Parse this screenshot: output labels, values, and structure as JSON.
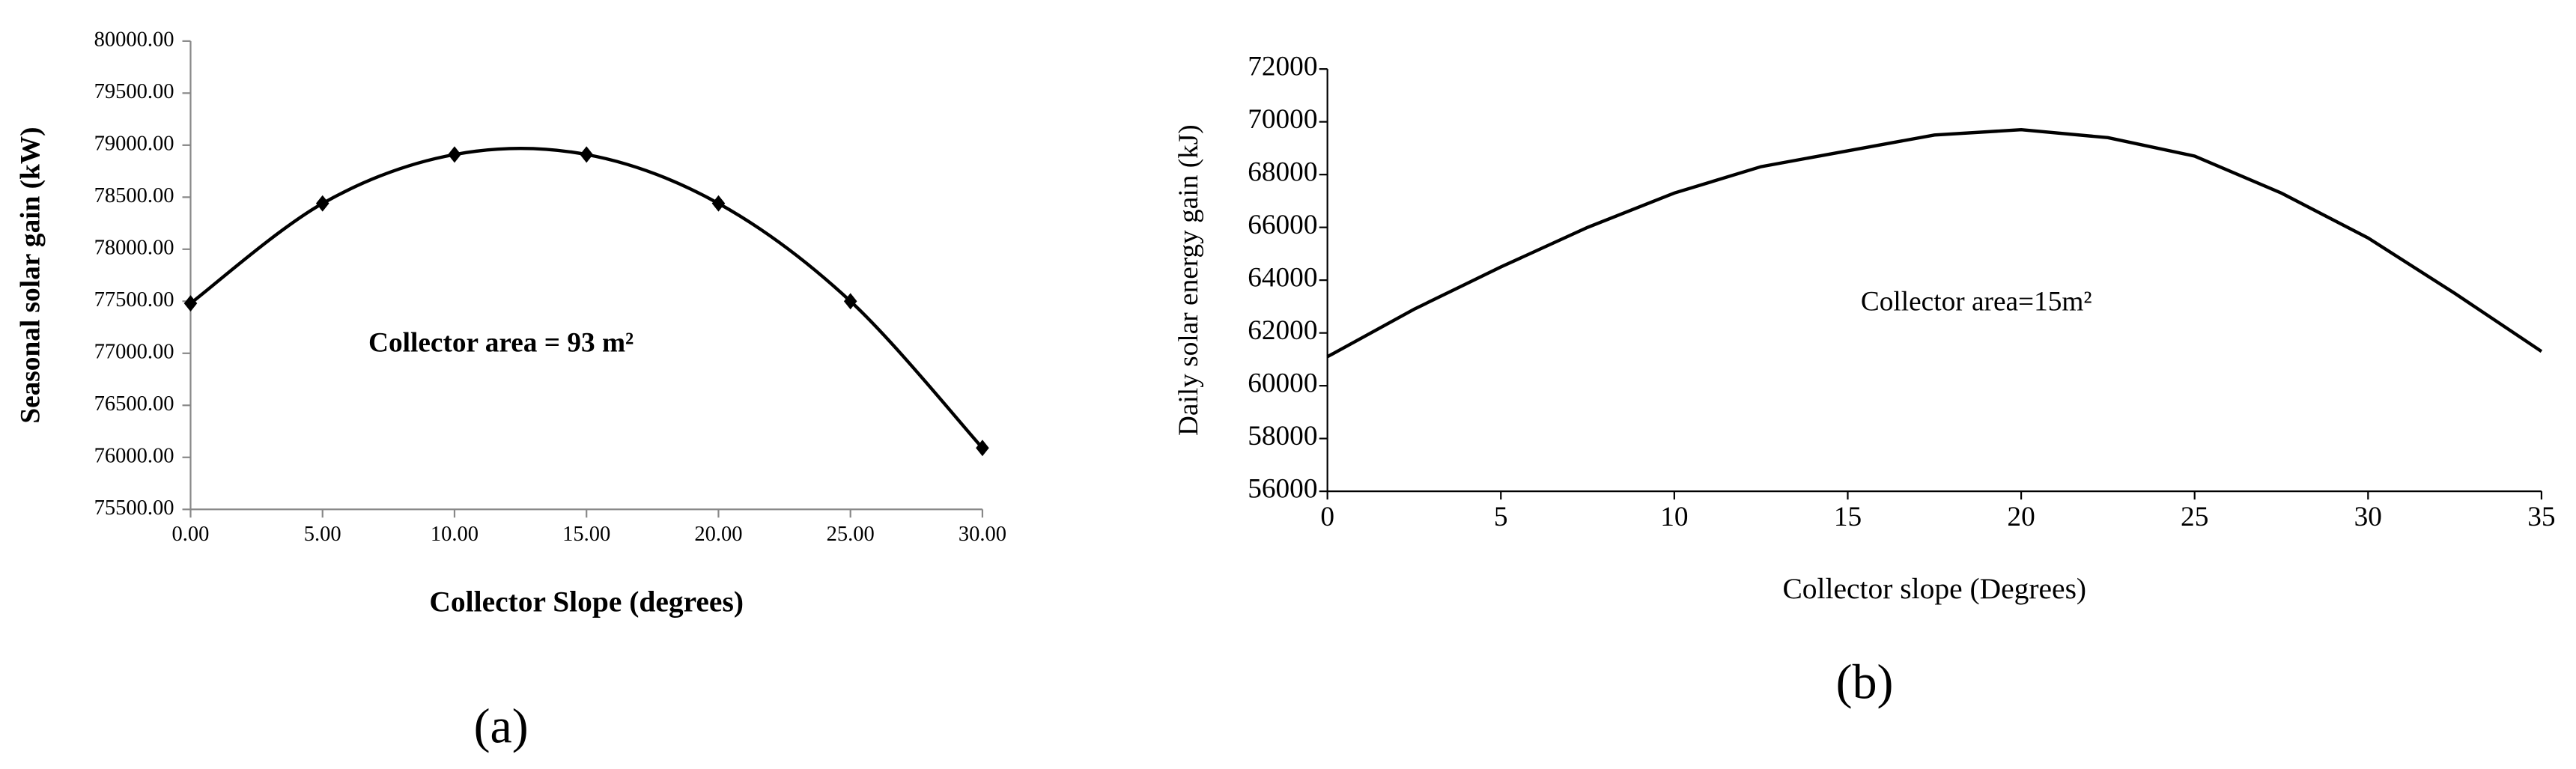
{
  "chart_data": [
    {
      "type": "line",
      "smooth": true,
      "markers": true,
      "color": "#000000",
      "x_label": "Collector Slope (degrees)",
      "y_label": "Seasonal solar gain (kW)",
      "annotation": "Collector area = 93 m²",
      "caption": "(a)",
      "x": [
        0,
        5,
        10,
        15,
        20,
        25,
        30
      ],
      "values": [
        77480,
        78440,
        78910,
        78910,
        78440,
        77500,
        76090
      ],
      "xlim": [
        0,
        30
      ],
      "ylim": [
        75500,
        80000
      ],
      "xticks": [
        {
          "value": 0,
          "label": "0.00"
        },
        {
          "value": 5,
          "label": "5.00"
        },
        {
          "value": 10,
          "label": "10.00"
        },
        {
          "value": 15,
          "label": "15.00"
        },
        {
          "value": 20,
          "label": "20.00"
        },
        {
          "value": 25,
          "label": "25.00"
        },
        {
          "value": 30,
          "label": "30.00"
        }
      ],
      "yticks": [
        {
          "value": 75500,
          "label": "75500.00"
        },
        {
          "value": 76000,
          "label": "76000.00"
        },
        {
          "value": 76500,
          "label": "76500.00"
        },
        {
          "value": 77000,
          "label": "77000.00"
        },
        {
          "value": 77500,
          "label": "77500.00"
        },
        {
          "value": 78000,
          "label": "78000.00"
        },
        {
          "value": 78500,
          "label": "78500.00"
        },
        {
          "value": 79000,
          "label": "79000.00"
        },
        {
          "value": 79500,
          "label": "79500.00"
        },
        {
          "value": 80000,
          "label": "80000.00"
        }
      ]
    },
    {
      "type": "line",
      "smooth": false,
      "markers": false,
      "color": "#000000",
      "x_label": "Collector slope (Degrees)",
      "y_label": "Daily solar energy gain (kJ)",
      "annotation": "Collector area=15m²",
      "caption": "(b)",
      "x": [
        0,
        2.5,
        5,
        7.5,
        10,
        12.5,
        15,
        17.5,
        20,
        22.5,
        25,
        27.5,
        30,
        32.5,
        35
      ],
      "values": [
        61100,
        62900,
        64500,
        66000,
        67300,
        68300,
        68900,
        69500,
        69700,
        69400,
        68700,
        67300,
        65600,
        63500,
        61300
      ],
      "xlim": [
        0,
        35
      ],
      "ylim": [
        56000,
        72000
      ],
      "xticks": [
        0,
        5,
        10,
        15,
        20,
        25,
        30,
        35
      ],
      "yticks": [
        56000,
        58000,
        60000,
        62000,
        64000,
        66000,
        68000,
        70000,
        72000
      ]
    }
  ]
}
